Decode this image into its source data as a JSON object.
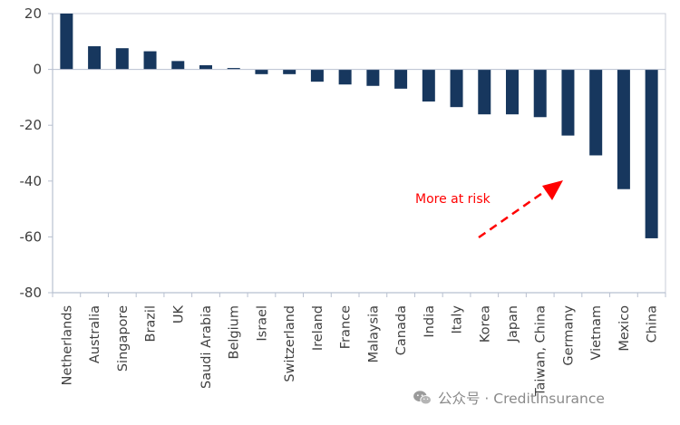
{
  "chart_data": {
    "type": "bar",
    "title": "",
    "xlabel": "",
    "ylabel": "",
    "ylim": [
      -80,
      20
    ],
    "yticks": [
      20,
      0,
      -20,
      -40,
      -60,
      -80
    ],
    "grid": false,
    "legend": "none",
    "categories": [
      "Netherlands",
      "Australia",
      "Singapore",
      "Brazil",
      "UK",
      "Saudi Arabia",
      "Belgium",
      "Israel",
      "Switzerland",
      "Ireland",
      "France",
      "Malaysia",
      "Canada",
      "India",
      "Italy",
      "Korea",
      "Japan",
      "Taiwan, China",
      "Germany",
      "Vietnam",
      "Mexico",
      "China"
    ],
    "values": [
      20,
      8.3,
      7.6,
      6.5,
      3.0,
      1.5,
      0.5,
      -1.7,
      -1.7,
      -4.4,
      -5.4,
      -5.9,
      -6.9,
      -11.5,
      -13.5,
      -16.1,
      -16.1,
      -17.1,
      -23.7,
      -30.8,
      -42.9,
      -60.5
    ],
    "bar_color": "#17375e",
    "annotations": [
      {
        "text": "More at risk",
        "color": "#ff0000",
        "arrow": "up-right"
      }
    ]
  },
  "watermark": {
    "text": "公众号 · CreditInsurance",
    "icon": "wechat-icon"
  }
}
